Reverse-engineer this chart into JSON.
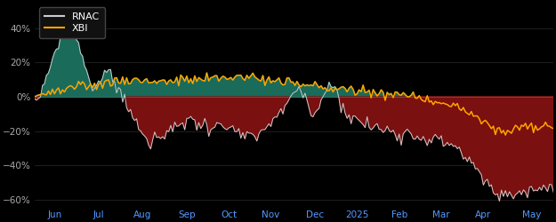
{
  "background_color": "#000000",
  "plot_bg_color": "#000000",
  "rnac_color": "#cccccc",
  "xbi_color": "#FFA500",
  "fill_positive_color": "#1a6b5a",
  "fill_negative_color": "#7a1010",
  "legend_bg": "#111111",
  "legend_edge": "#444444",
  "ylim": [
    -65,
    55
  ],
  "yticks": [
    -60,
    -40,
    -20,
    0,
    20,
    40
  ],
  "xlabel_color": "#5599ff",
  "tick_color": "#aaaaaa",
  "x_labels": [
    "Jun",
    "Jul",
    "Aug",
    "Sep",
    "Oct",
    "Nov",
    "Dec",
    "2025",
    "Feb",
    "Mar",
    "Apr",
    "May"
  ],
  "num_points": 260
}
